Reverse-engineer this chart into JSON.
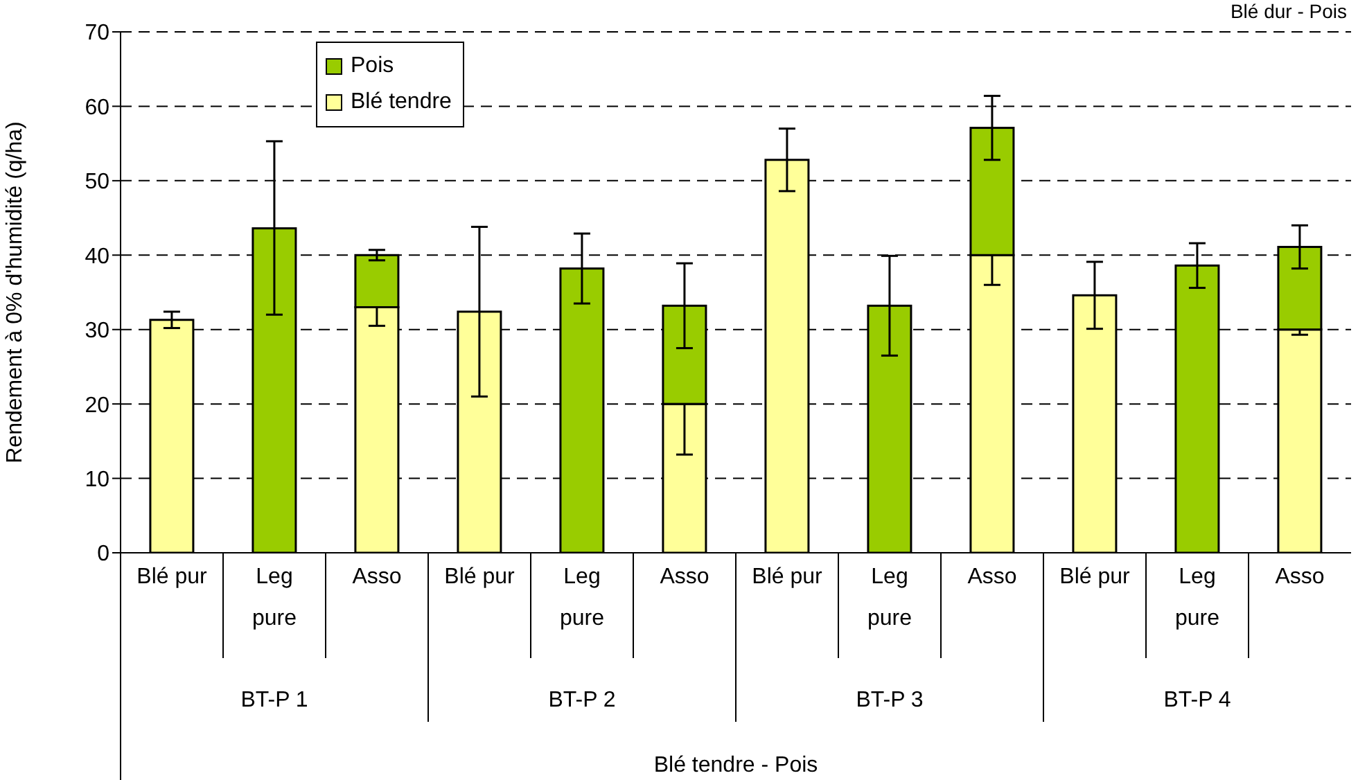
{
  "chart_data": {
    "type": "bar",
    "stacked": true,
    "categories": [
      "Blé pur",
      "Leg pure",
      "Asso",
      "Blé pur",
      "Leg pure",
      "Asso",
      "Blé pur",
      "Leg pure",
      "Asso",
      "Blé pur",
      "Leg pure",
      "Asso"
    ],
    "ylabel": "Rendement à 0% d'humidité (q/ha)",
    "annotations": [
      "BT-P 1",
      "BT-P 2",
      "BT-P 3",
      "BT-P 4",
      "Blé tendre - Pois",
      "Blé dur - Pois"
    ],
    "series": [
      {
        "name": "Blé tendre",
        "color": "#ffff99",
        "values": [
          31.3,
          null,
          33,
          32.4,
          null,
          20,
          52.8,
          null,
          40,
          34.6,
          null,
          30
        ],
        "errors": [
          1.1,
          null,
          2.5,
          11.4,
          null,
          6.8,
          4.2,
          null,
          4,
          4.5,
          null,
          0.7
        ]
      },
      {
        "name": "Pois",
        "color": "#99cc00",
        "values": [
          null,
          43.6,
          7,
          null,
          38.2,
          13.2,
          null,
          33.2,
          17.1,
          null,
          38.6,
          11.1
        ],
        "errors": [
          null,
          [
            32,
            55.3
          ],
          0.7,
          null,
          4.7,
          5.7,
          null,
          6.7,
          4.3,
          null,
          3,
          2.9
        ]
      }
    ],
    "ylim": [
      0,
      70
    ],
    "yticks": [
      0,
      10,
      20,
      30,
      40,
      50,
      60,
      70
    ],
    "grid": "y",
    "line_style": "dashed",
    "legend": "top left"
  }
}
